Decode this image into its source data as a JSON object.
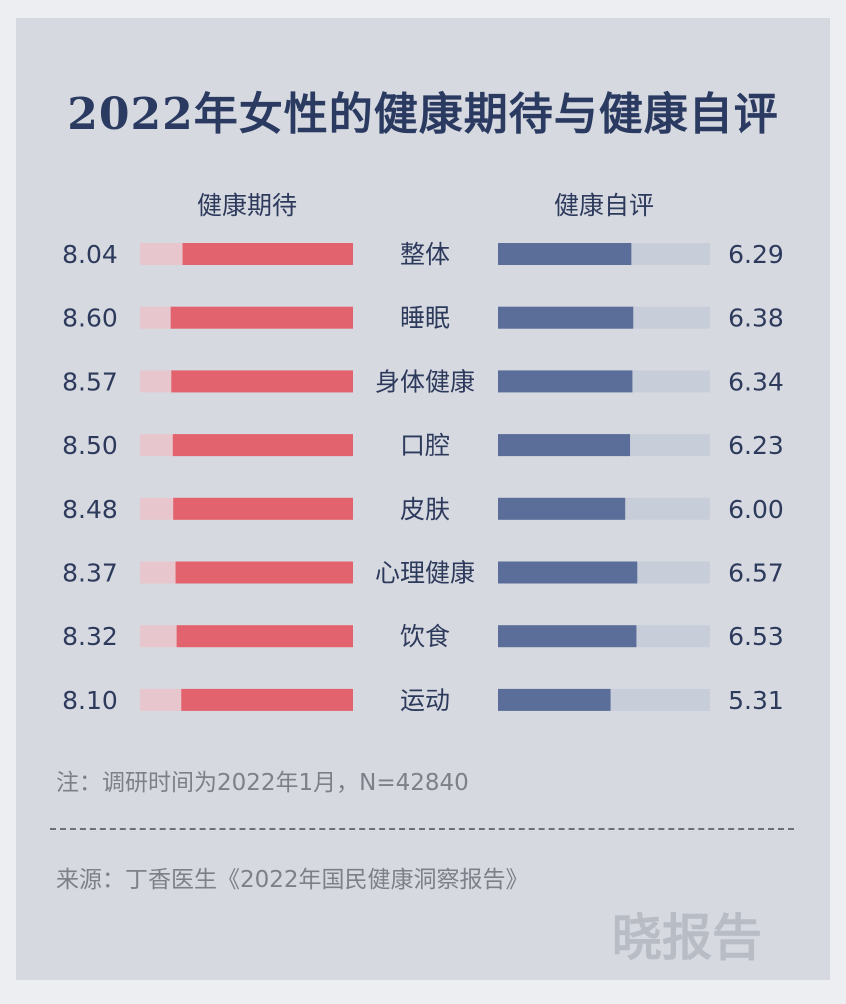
{
  "chart_data": {
    "type": "bar",
    "title": "2022年女性的健康期待与健康自评",
    "categories": [
      "整体",
      "睡眠",
      "身体健康",
      "口腔",
      "皮肤",
      "心理健康",
      "饮食",
      "运动"
    ],
    "series": [
      {
        "name": "健康期待",
        "values": [
          8.04,
          8.6,
          8.57,
          8.5,
          8.48,
          8.37,
          8.32,
          8.1
        ]
      },
      {
        "name": "健康自评",
        "values": [
          6.29,
          6.38,
          6.34,
          6.23,
          6.0,
          6.57,
          6.53,
          5.31
        ]
      }
    ],
    "xlim": [
      0,
      10
    ],
    "value_labels": {
      "健康期待": [
        "8.04",
        "8.60",
        "8.57",
        "8.50",
        "8.48",
        "8.37",
        "8.32",
        "8.10"
      ],
      "健康自评": [
        "6.29",
        "6.38",
        "6.34",
        "6.23",
        "6.00",
        "6.57",
        "6.53",
        "5.31"
      ]
    },
    "colors": {
      "expectation": "#e2626e",
      "self_rating": "#5a6e99",
      "track_left": "#e7c7cd",
      "track_right": "#c8ced9"
    }
  },
  "note": "注：调研时间为2022年1月，N=42840",
  "source": "来源：丁香医生《2022年国民健康洞察报告》",
  "logo": "晓报告"
}
